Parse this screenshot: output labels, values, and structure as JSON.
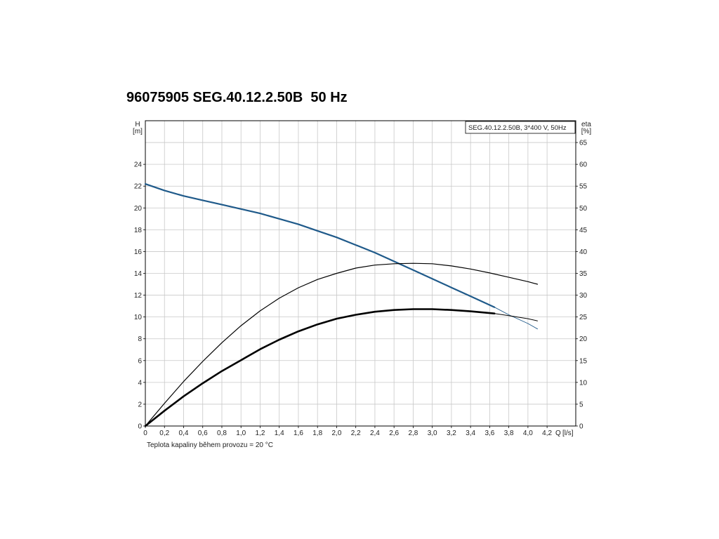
{
  "page": {
    "title": "96075905 SEG.40.12.2.50B  50 Hz"
  },
  "chart_data": {
    "type": "line",
    "title": "96075905 SEG.40.12.2.50B  50 Hz",
    "legend": "SEG.40.12.2.50B, 3*400 V, 50Hz",
    "legend_position": "top-right",
    "xlabel": "Q [l/s]",
    "x_axis_label": "Q",
    "x_unit": "[l/s]",
    "ylabel_left": "H [m]",
    "y_left_label": "H",
    "y_left_unit": "[m]",
    "ylabel_right": "eta [%]",
    "y_right_label": "eta",
    "y_right_unit": "[%]",
    "note": "Teplota kapaliny během provozu = 20 °C",
    "grid": true,
    "xlim": [
      0,
      4.5
    ],
    "ylim_left": [
      0,
      28
    ],
    "ylim_right": [
      0,
      70
    ],
    "x_ticks": [
      "0",
      "0,2",
      "0,4",
      "0,6",
      "0,8",
      "1,0",
      "1,2",
      "1,4",
      "1,6",
      "1,8",
      "2,0",
      "2,2",
      "2,4",
      "2,6",
      "2,8",
      "3,0",
      "3,2",
      "3,4",
      "3,6",
      "3,8",
      "4,0",
      "4,2"
    ],
    "y_left_ticks": [
      "0",
      "2",
      "4",
      "6",
      "8",
      "10",
      "12",
      "14",
      "16",
      "18",
      "20",
      "22",
      "24"
    ],
    "y_right_ticks": [
      "0",
      "5",
      "10",
      "15",
      "20",
      "25",
      "30",
      "35",
      "40",
      "45",
      "50",
      "55",
      "60",
      "65"
    ],
    "series": [
      {
        "axis": "left",
        "color": "#1f5a8a",
        "width": 2.2,
        "x": [
          0,
          0.2,
          0.4,
          0.6,
          0.8,
          1.0,
          1.2,
          1.4,
          1.6,
          1.8,
          2.0,
          2.2,
          2.4,
          2.6,
          2.8,
          3.0,
          3.2,
          3.4,
          3.6,
          3.65
        ],
        "y": [
          22.2,
          21.6,
          21.1,
          20.7,
          20.3,
          19.9,
          19.5,
          19.0,
          18.5,
          17.9,
          17.3,
          16.6,
          15.9,
          15.1,
          14.3,
          13.5,
          12.7,
          11.9,
          11.1,
          10.9
        ]
      },
      {
        "axis": "left",
        "color": "#1f5a8a",
        "width": 0.9,
        "x": [
          3.65,
          3.8,
          4.0,
          4.1
        ],
        "y": [
          10.9,
          10.2,
          9.4,
          8.9
        ]
      },
      {
        "axis": "right",
        "color": "#000000",
        "width": 1.2,
        "x": [
          0,
          0.2,
          0.4,
          0.6,
          0.8,
          1.0,
          1.2,
          1.4,
          1.6,
          1.8,
          2.0,
          2.2,
          2.4,
          2.6,
          2.8,
          3.0,
          3.2,
          3.4,
          3.6,
          3.8,
          4.0,
          4.1
        ],
        "y": [
          0,
          5.2,
          10.2,
          14.8,
          19.1,
          23.0,
          26.4,
          29.3,
          31.7,
          33.6,
          35.0,
          36.2,
          36.9,
          37.2,
          37.3,
          37.2,
          36.7,
          36.0,
          35.1,
          34.1,
          33.1,
          32.5
        ]
      },
      {
        "axis": "right",
        "color": "#000000",
        "width": 2.6,
        "x": [
          0,
          0.2,
          0.4,
          0.6,
          0.8,
          1.0,
          1.2,
          1.4,
          1.6,
          1.8,
          2.0,
          2.2,
          2.4,
          2.6,
          2.8,
          3.0,
          3.2,
          3.4,
          3.6,
          3.65
        ],
        "y": [
          0,
          3.5,
          6.8,
          9.8,
          12.6,
          15.1,
          17.6,
          19.8,
          21.7,
          23.3,
          24.6,
          25.5,
          26.2,
          26.6,
          26.8,
          26.8,
          26.6,
          26.3,
          25.9,
          25.8
        ]
      },
      {
        "axis": "right",
        "color": "#000000",
        "width": 1.0,
        "x": [
          3.65,
          3.8,
          4.0,
          4.1
        ],
        "y": [
          25.8,
          25.3,
          24.6,
          24.1
        ]
      }
    ]
  }
}
